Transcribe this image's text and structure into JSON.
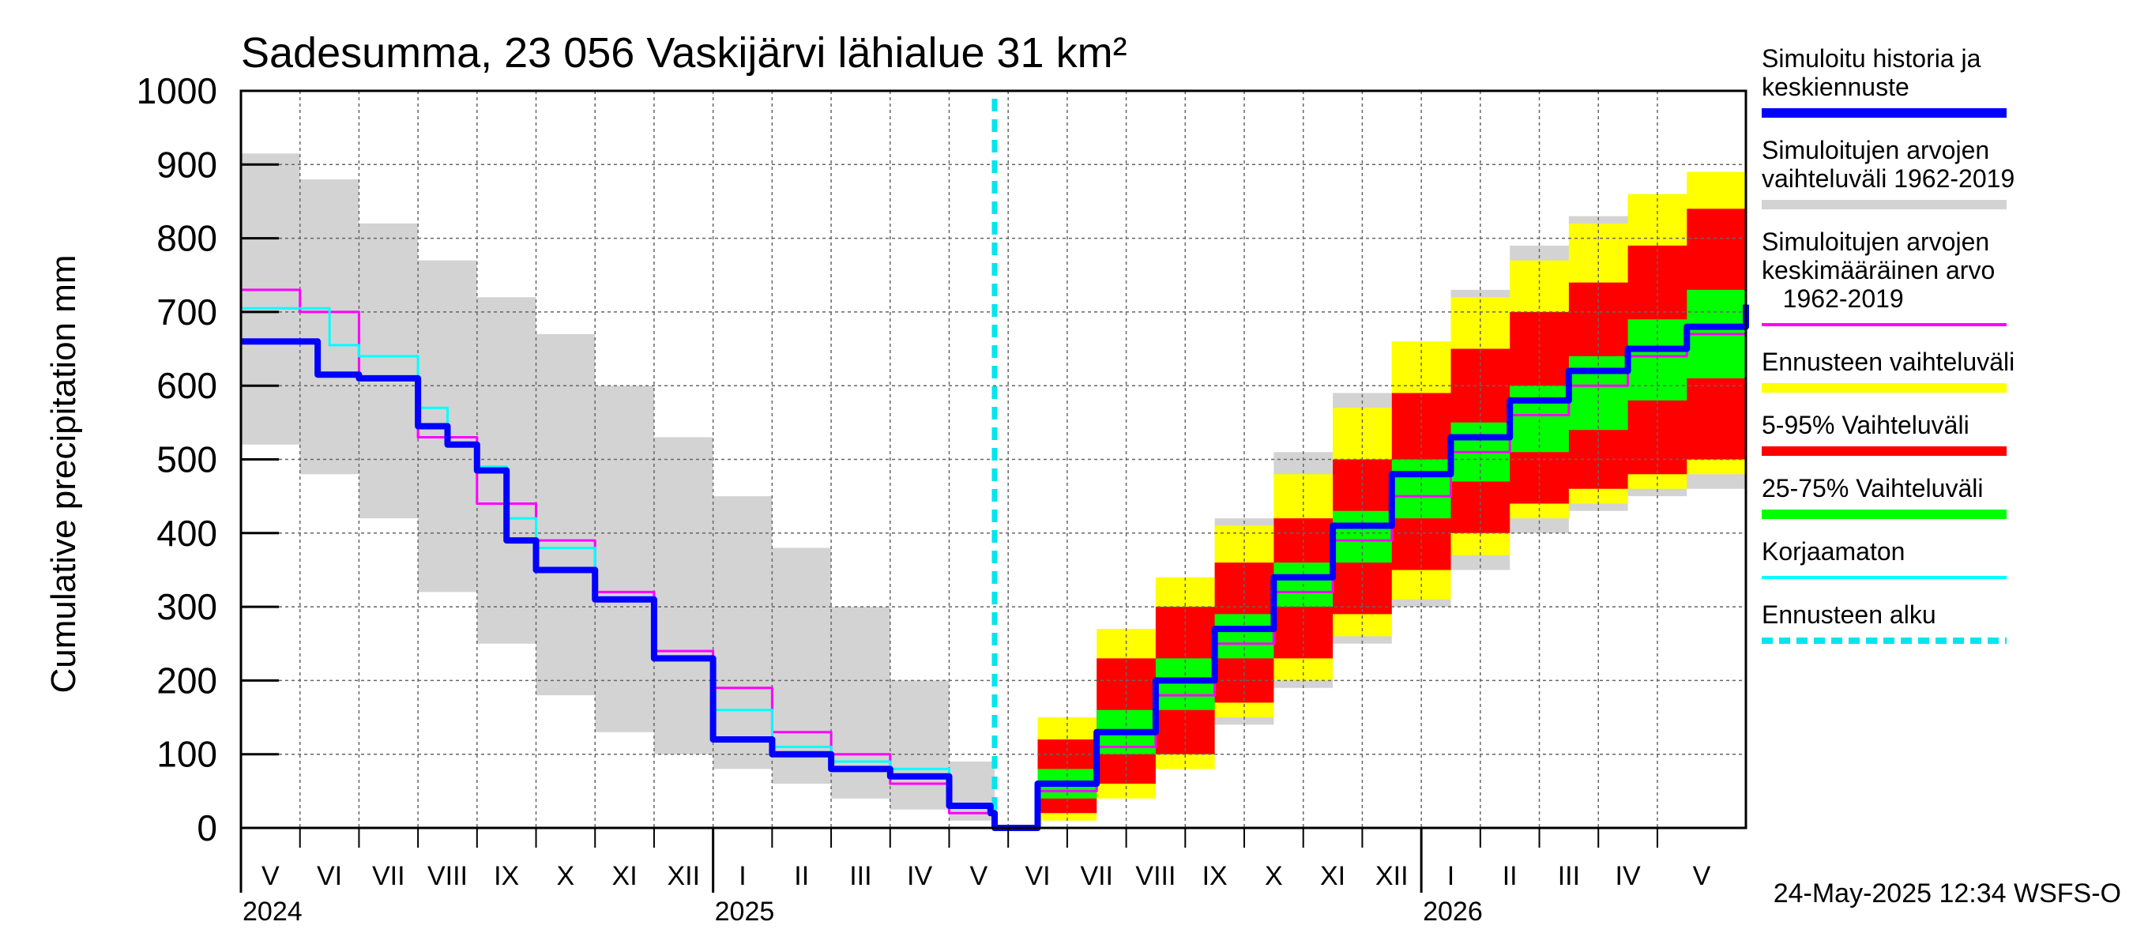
{
  "chart_data": {
    "type": "area",
    "title": "Sadesumma, 23 056 Vaskijärvi lähialue 31 km²",
    "ylabel": "Cumulative precipitation   mm",
    "ylim": [
      0,
      1000
    ],
    "yticks": [
      0,
      100,
      200,
      300,
      400,
      500,
      600,
      700,
      800,
      900,
      1000
    ],
    "x_range_months": [
      0,
      25.5
    ],
    "forecast_start_month": 12.77,
    "months": [
      {
        "label": "V",
        "pos": 0
      },
      {
        "label": "VI",
        "pos": 1
      },
      {
        "label": "VII",
        "pos": 2
      },
      {
        "label": "VIII",
        "pos": 3
      },
      {
        "label": "IX",
        "pos": 4
      },
      {
        "label": "X",
        "pos": 5
      },
      {
        "label": "XI",
        "pos": 6
      },
      {
        "label": "XII",
        "pos": 7
      },
      {
        "label": "I",
        "pos": 8
      },
      {
        "label": "II",
        "pos": 9
      },
      {
        "label": "III",
        "pos": 10
      },
      {
        "label": "IV",
        "pos": 11
      },
      {
        "label": "V",
        "pos": 12
      },
      {
        "label": "VI",
        "pos": 13
      },
      {
        "label": "VII",
        "pos": 14
      },
      {
        "label": "VIII",
        "pos": 15
      },
      {
        "label": "IX",
        "pos": 16
      },
      {
        "label": "X",
        "pos": 17
      },
      {
        "label": "XI",
        "pos": 18
      },
      {
        "label": "XII",
        "pos": 19
      },
      {
        "label": "I",
        "pos": 20
      },
      {
        "label": "II",
        "pos": 21
      },
      {
        "label": "III",
        "pos": 22
      },
      {
        "label": "IV",
        "pos": 23
      },
      {
        "label": "V",
        "pos": 24
      }
    ],
    "years": [
      {
        "label": "2024",
        "pos": 0
      },
      {
        "label": "2025",
        "pos": 8
      },
      {
        "label": "2026",
        "pos": 20
      }
    ],
    "series": [
      {
        "name": "hist_range",
        "kind": "band",
        "color": "#d3d3d3",
        "x": [
          0,
          1,
          2,
          3,
          4,
          5,
          6,
          7,
          8,
          9,
          10,
          11,
          12,
          12.77
        ],
        "upper": [
          915,
          880,
          820,
          770,
          720,
          670,
          600,
          530,
          450,
          380,
          300,
          200,
          90,
          25
        ],
        "lower": [
          520,
          480,
          420,
          320,
          250,
          180,
          130,
          100,
          80,
          60,
          40,
          25,
          10,
          0
        ]
      },
      {
        "name": "hist_range_future",
        "kind": "band",
        "color": "#d3d3d3",
        "x": [
          12.77,
          13.5,
          14.5,
          15.5,
          16.5,
          17.5,
          18.5,
          19.5,
          20.5,
          21.5,
          22.5,
          23.5,
          24.5,
          25.5
        ],
        "upper": [
          0,
          120,
          230,
          330,
          420,
          510,
          590,
          660,
          730,
          790,
          830,
          860,
          880,
          900
        ],
        "lower": [
          0,
          20,
          50,
          90,
          140,
          190,
          250,
          300,
          350,
          400,
          430,
          450,
          460,
          490
        ]
      },
      {
        "name": "forecast_range",
        "kind": "band",
        "color": "#ffff00",
        "x": [
          12.77,
          13.5,
          14.5,
          15.5,
          16.5,
          17.5,
          18.5,
          19.5,
          20.5,
          21.5,
          22.5,
          23.5,
          24.5,
          25.5
        ],
        "upper": [
          0,
          150,
          270,
          340,
          410,
          480,
          570,
          660,
          720,
          770,
          820,
          860,
          890,
          905
        ],
        "lower": [
          0,
          10,
          40,
          80,
          150,
          200,
          260,
          310,
          370,
          420,
          440,
          460,
          480,
          540
        ]
      },
      {
        "name": "p5_95",
        "kind": "band",
        "color": "#ff0000",
        "x": [
          12.77,
          13.5,
          14.5,
          15.5,
          16.5,
          17.5,
          18.5,
          19.5,
          20.5,
          21.5,
          22.5,
          23.5,
          24.5,
          25.5
        ],
        "upper": [
          0,
          120,
          230,
          300,
          360,
          420,
          500,
          590,
          650,
          700,
          740,
          790,
          840,
          890
        ],
        "lower": [
          0,
          20,
          60,
          100,
          170,
          230,
          290,
          350,
          400,
          440,
          460,
          480,
          500,
          550
        ]
      },
      {
        "name": "p25_75",
        "kind": "band",
        "color": "#00ff00",
        "x": [
          12.77,
          13.5,
          14.5,
          15.5,
          16.5,
          17.5,
          18.5,
          19.5,
          20.5,
          21.5,
          22.5,
          23.5,
          24.5,
          25.5
        ],
        "upper": [
          0,
          80,
          160,
          230,
          290,
          360,
          430,
          500,
          550,
          600,
          640,
          690,
          730,
          780
        ],
        "lower": [
          0,
          40,
          100,
          160,
          230,
          300,
          360,
          420,
          470,
          510,
          540,
          580,
          610,
          640
        ]
      },
      {
        "name": "mean",
        "kind": "line",
        "color": "#ff00ff",
        "width": 3,
        "x": [
          0,
          1,
          2,
          3,
          4,
          5,
          6,
          7,
          8,
          9,
          10,
          11,
          12,
          12.77,
          13.5,
          14.5,
          15.5,
          16.5,
          17.5,
          18.5,
          19.5,
          20.5,
          21.5,
          22.5,
          23.5,
          24.5,
          25.5
        ],
        "y": [
          730,
          700,
          610,
          530,
          440,
          390,
          320,
          240,
          190,
          130,
          100,
          60,
          20,
          0,
          50,
          110,
          180,
          250,
          320,
          390,
          450,
          510,
          560,
          600,
          640,
          670,
          700
        ]
      },
      {
        "name": "uncorrected",
        "kind": "line",
        "color": "#00ffff",
        "width": 3,
        "x": [
          0,
          1,
          1.5,
          2,
          3,
          3.5,
          4,
          4.5,
          5,
          6,
          7,
          8,
          9,
          10,
          11,
          12,
          12.77
        ],
        "y": [
          705,
          705,
          655,
          640,
          570,
          520,
          490,
          420,
          380,
          310,
          230,
          160,
          110,
          90,
          80,
          30,
          20
        ]
      },
      {
        "name": "history_forecast",
        "kind": "line",
        "color": "#0000ff",
        "width": 8,
        "x": [
          0,
          1,
          1.3,
          2,
          3,
          3.5,
          4,
          4.5,
          5,
          6,
          7,
          8,
          9,
          10,
          11,
          12,
          12.7,
          12.77,
          13.5,
          14.5,
          15.5,
          16.5,
          17.5,
          18.5,
          19.5,
          20.5,
          21.5,
          22.5,
          23.5,
          24.5,
          25.5
        ],
        "y": [
          660,
          660,
          615,
          610,
          545,
          520,
          485,
          390,
          350,
          310,
          230,
          120,
          100,
          80,
          70,
          30,
          20,
          0,
          60,
          130,
          200,
          270,
          340,
          410,
          480,
          530,
          580,
          620,
          650,
          680,
          710
        ]
      }
    ],
    "legend_position": "right",
    "legend": [
      {
        "text": [
          "Simuloitu historia ja",
          "keskiennuste"
        ],
        "color": "#0000ff",
        "style": "thick"
      },
      {
        "text": [
          "Simuloitujen arvojen",
          "vaihteluväli 1962-2019"
        ],
        "color": "#d3d3d3",
        "style": "thick"
      },
      {
        "text": [
          "Simuloitujen arvojen",
          "keskimääräinen arvo",
          "   1962-2019"
        ],
        "color": "#ff00ff",
        "style": "thin"
      },
      {
        "text": [
          "Ennusteen vaihteluväli"
        ],
        "color": "#ffff00",
        "style": "thick"
      },
      {
        "text": [
          "5-95% Vaihteluväli"
        ],
        "color": "#ff0000",
        "style": "thick"
      },
      {
        "text": [
          "25-75% Vaihteluväli"
        ],
        "color": "#00ff00",
        "style": "thick"
      },
      {
        "text": [
          "Korjaamaton"
        ],
        "color": "#00ffff",
        "style": "thin"
      },
      {
        "text": [
          "Ennusteen alku"
        ],
        "color": "#00e5ee",
        "style": "dashed"
      }
    ],
    "footer": "24-May-2025 12:34 WSFS-O"
  }
}
